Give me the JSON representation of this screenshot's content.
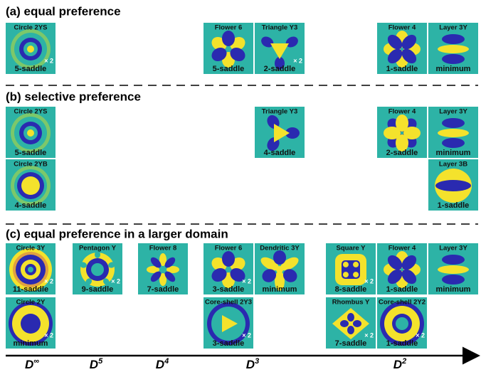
{
  "panels": [
    {
      "title": "(a) equal preference",
      "tiles": [
        {
          "name": "Circle 2YS",
          "label": "5-saddle",
          "multiplier": "× 2"
        },
        {
          "name": "Flower 6",
          "label": "5-saddle"
        },
        {
          "name": "Triangle Y3",
          "label": "2-saddle",
          "multiplier": "× 2"
        },
        {
          "name": "Flower 4",
          "label": "1-saddle"
        },
        {
          "name": "Layer 3Y",
          "label": "minimum"
        }
      ]
    },
    {
      "title": "(b) selective preference",
      "tiles": [
        {
          "name": "Circle 2YS",
          "label": "5-saddle"
        },
        {
          "name": "Triangle Y3",
          "label": "4-saddle"
        },
        {
          "name": "Flower 4",
          "label": "2-saddle"
        },
        {
          "name": "Layer 3Y",
          "label": "minimum"
        },
        {
          "name": "Circle 2YB",
          "label": "4-saddle"
        },
        {
          "name": "Layer 3B",
          "label": "1-saddle"
        }
      ]
    },
    {
      "title": "(c) equal preference in a larger domain",
      "tiles": [
        {
          "name": "Circle 3Y",
          "label": "11-saddle",
          "multiplier": "× 2"
        },
        {
          "name": "Pentagon Y",
          "label": "9-saddle",
          "multiplier": "× 2"
        },
        {
          "name": "Flower 8",
          "label": "7-saddle"
        },
        {
          "name": "Flower 6",
          "label": "3-saddle",
          "multiplier": "× 2"
        },
        {
          "name": "Dendritic 3Y",
          "label": "minimum"
        },
        {
          "name": "Square Y",
          "label": "8-saddle",
          "multiplier": "× 2"
        },
        {
          "name": "Flower 4",
          "label": "1-saddle"
        },
        {
          "name": "Layer 3Y",
          "label": "minimum"
        },
        {
          "name": "Circle 2Y",
          "label": "minimum",
          "multiplier": "× 2"
        },
        {
          "name": "Core-shell 2Y3",
          "label": "3-saddle",
          "multiplier": "× 2"
        },
        {
          "name": "Rhombus Y",
          "label": "7-saddle",
          "multiplier": "× 2"
        },
        {
          "name": "Core-shell 2Y2",
          "label": "1-saddle",
          "multiplier": "× 2"
        }
      ]
    }
  ],
  "axis": [
    {
      "base": "D",
      "sup": "∞"
    },
    {
      "base": "D",
      "sup": "5"
    },
    {
      "base": "D",
      "sup": "4"
    },
    {
      "base": "D",
      "sup": "3"
    },
    {
      "base": "D",
      "sup": "2"
    }
  ]
}
